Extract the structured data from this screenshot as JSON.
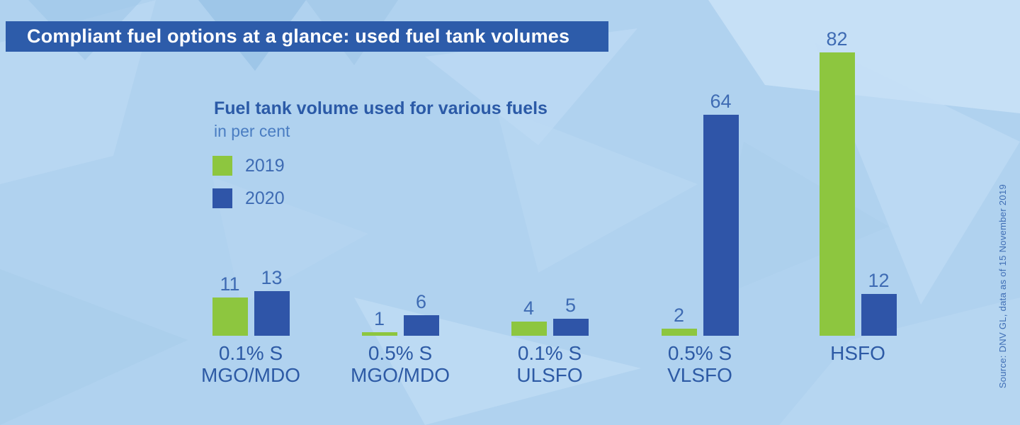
{
  "title_bar": {
    "title": "Compliant fuel options at a glance: used fuel tank volumes"
  },
  "chart_header": {
    "heading": "Fuel tank volume used for various fuels",
    "subheading": "in per cent"
  },
  "legend": {
    "items": [
      {
        "label": "2019",
        "color": "#8dc63f"
      },
      {
        "label": "2020",
        "color": "#2f55a8"
      }
    ]
  },
  "source_note": "Source: DNV GL, data as of 15 November 2019",
  "colors": {
    "background": "#b0d2ef",
    "title_bar_bg": "#2d5caa",
    "title_text": "#ffffff",
    "heading_text": "#2b5aa7",
    "subheading_text": "#4a7dc2",
    "value_label_text": "#3e6bb3",
    "category_text": "#2d5aa5",
    "bar_green": "#8dc63f",
    "bar_blue": "#2f55a8"
  },
  "chart_data": {
    "type": "bar",
    "title": "Fuel tank volume used for various fuels",
    "unit": "per cent",
    "axes_hidden": true,
    "value_labels_shown": true,
    "legend_position": "upper-left",
    "ylim": [
      0,
      90
    ],
    "categories": [
      {
        "line1": "0.1% S",
        "line2": "MGO/MDO"
      },
      {
        "line1": "0.5% S",
        "line2": "MGO/MDO"
      },
      {
        "line1": "0.1% S",
        "line2": "ULSFO"
      },
      {
        "line1": "0.5% S",
        "line2": "VLSFO"
      },
      {
        "line1": "HSFO",
        "line2": ""
      }
    ],
    "series": [
      {
        "name": "2019",
        "color": "#8dc63f",
        "values": [
          11,
          1,
          4,
          2,
          82
        ]
      },
      {
        "name": "2020",
        "color": "#2f55a8",
        "values": [
          13,
          6,
          5,
          64,
          12
        ]
      }
    ]
  }
}
